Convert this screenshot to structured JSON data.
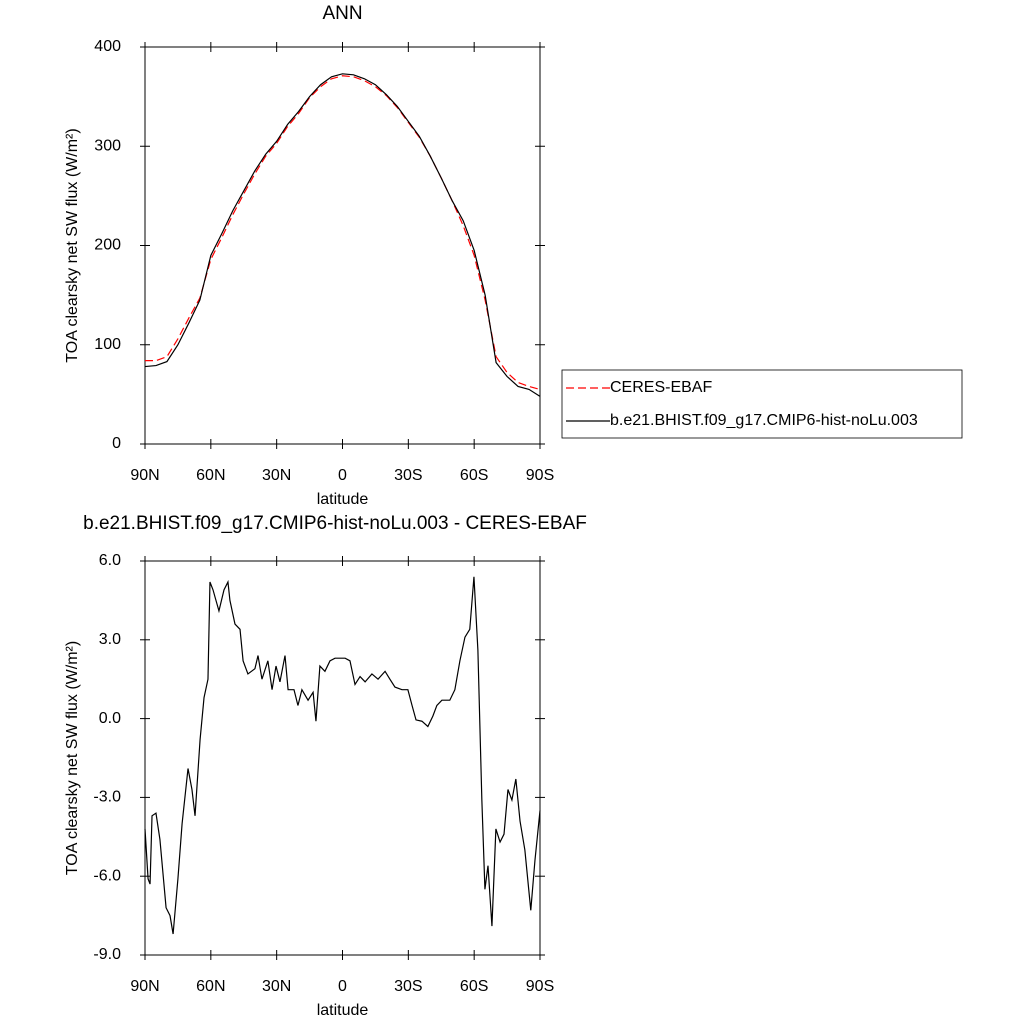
{
  "chart_data": [
    {
      "type": "line",
      "title": "ANN",
      "x_label": "latitude",
      "y_label": "TOA clearsky net SW flux (W/m²)",
      "x": [
        90,
        85,
        80,
        75,
        70,
        65,
        60,
        55,
        50,
        45,
        40,
        35,
        30,
        25,
        20,
        15,
        10,
        5,
        0,
        -5,
        -10,
        -15,
        -20,
        -25,
        -30,
        -35,
        -40,
        -45,
        -50,
        -55,
        -60,
        -65,
        -70,
        -75,
        -80,
        -85,
        -90
      ],
      "series": [
        {
          "name": "CERES-EBAF",
          "color": "#ff0000",
          "line_style": "dashed",
          "values": [
            84,
            84,
            88,
            106,
            127,
            147,
            186,
            208,
            231,
            252,
            272,
            290,
            303,
            320,
            333,
            349,
            360,
            368,
            371,
            370,
            366,
            360,
            351,
            339,
            324,
            309,
            290,
            268,
            245,
            220,
            190,
            145,
            88,
            72,
            62,
            58,
            55
          ]
        },
        {
          "name": "b.e21.BHIST.f09_g17.CMIP6-hist-noLu.003",
          "color": "#000000",
          "line_style": "solid",
          "values": [
            78,
            79,
            83,
            100,
            122,
            145,
            190,
            212,
            235,
            255,
            275,
            292,
            305,
            322,
            335,
            350,
            362,
            370,
            373,
            372,
            368,
            362,
            352,
            340,
            325,
            310,
            290,
            268,
            245,
            225,
            195,
            150,
            82,
            68,
            58,
            55,
            48
          ]
        }
      ],
      "xlim": [
        90,
        -90
      ],
      "xticks": [
        {
          "value": 90,
          "label": "90N"
        },
        {
          "value": 60,
          "label": "60N"
        },
        {
          "value": 30,
          "label": "30N"
        },
        0,
        {
          "value": -30,
          "label": "30S"
        },
        {
          "value": -60,
          "label": "60S"
        },
        {
          "value": -90,
          "label": "90S"
        }
      ],
      "ylim": [
        0,
        400
      ],
      "yticks": [
        0,
        100,
        200,
        300,
        400
      ],
      "legend": "right"
    },
    {
      "type": "line",
      "title": "b.e21.BHIST.f09_g17.CMIP6-hist-noLu.003 - CERES-EBAF",
      "x_label": "latitude",
      "y_label": "TOA clearsky net SW flux (W/m²)",
      "x": [
        90,
        88.6,
        87.7,
        86.8,
        85,
        83.2,
        80.4,
        78.6,
        77.2,
        75,
        73.1,
        70.4,
        68.6,
        67.2,
        64.9,
        63.1,
        61.3,
        60.4,
        59,
        58,
        56.3,
        54,
        52.2,
        51.3,
        49,
        46.7,
        45.3,
        43.1,
        39.9,
        38.5,
        36.7,
        34,
        32.1,
        30.3,
        28.5,
        26.2,
        24.8,
        22.1,
        20.3,
        18.5,
        15.7,
        13.4,
        12.1,
        10.3,
        8,
        5.7,
        3.4,
        1.1,
        -1.2,
        -3.4,
        -5.7,
        -8,
        -10.3,
        -13.4,
        -16.2,
        -19.4,
        -21.6,
        -23.9,
        -27.1,
        -29.8,
        -31.7,
        -33.5,
        -36.2,
        -38.9,
        -41.2,
        -43,
        -45.3,
        -48.9,
        -51.2,
        -53.5,
        -55.8,
        -58,
        -59.9,
        -61.7,
        -63.5,
        -64.9,
        -66.3,
        -68.1,
        -69.9,
        -71.8,
        -73.6,
        -75.4,
        -77.2,
        -79,
        -80.9,
        -83.1,
        -85.8,
        -87.7,
        -90
      ],
      "values": [
        -4.2,
        -6.1,
        -6.3,
        -3.7,
        -3.6,
        -4.6,
        -7.2,
        -7.5,
        -8.2,
        -6.1,
        -4.0,
        -1.9,
        -2.7,
        -3.7,
        -0.8,
        0.8,
        1.5,
        5.2,
        4.9,
        4.6,
        4.1,
        4.9,
        5.2,
        4.5,
        3.6,
        3.4,
        2.2,
        1.7,
        1.9,
        2.4,
        1.5,
        2.2,
        1.1,
        2.0,
        1.4,
        2.4,
        1.1,
        1.1,
        0.5,
        1.1,
        0.7,
        1.0,
        -0.1,
        2.0,
        1.8,
        2.2,
        2.3,
        2.3,
        2.3,
        2.2,
        1.3,
        1.6,
        1.4,
        1.7,
        1.5,
        1.8,
        1.5,
        1.2,
        1.1,
        1.1,
        0.5,
        -0.05,
        -0.1,
        -0.3,
        0.1,
        0.5,
        0.7,
        0.7,
        1.1,
        2.2,
        3.1,
        3.4,
        5.4,
        2.6,
        -3.1,
        -6.5,
        -5.6,
        -7.9,
        -4.2,
        -4.7,
        -4.4,
        -2.7,
        -3.1,
        -2.3,
        -3.9,
        -5.0,
        -7.3,
        -5.4,
        -3.5
      ],
      "color": "#000000",
      "xlim": [
        90,
        -90
      ],
      "xticks": [
        {
          "value": 90,
          "label": "90N"
        },
        {
          "value": 60,
          "label": "60N"
        },
        {
          "value": 30,
          "label": "30N"
        },
        0,
        {
          "value": -30,
          "label": "30S"
        },
        {
          "value": -60,
          "label": "60S"
        },
        {
          "value": -90,
          "label": "90S"
        }
      ],
      "ylim": [
        -9,
        6
      ],
      "yticks": [
        {
          "value": -9,
          "label": "-9.0"
        },
        {
          "value": -6,
          "label": "-6.0"
        },
        {
          "value": -3,
          "label": "-3.0"
        },
        {
          "value": 0,
          "label": "0.0"
        },
        {
          "value": 3,
          "label": "3.0"
        },
        {
          "value": 6,
          "label": "6.0"
        }
      ]
    }
  ]
}
